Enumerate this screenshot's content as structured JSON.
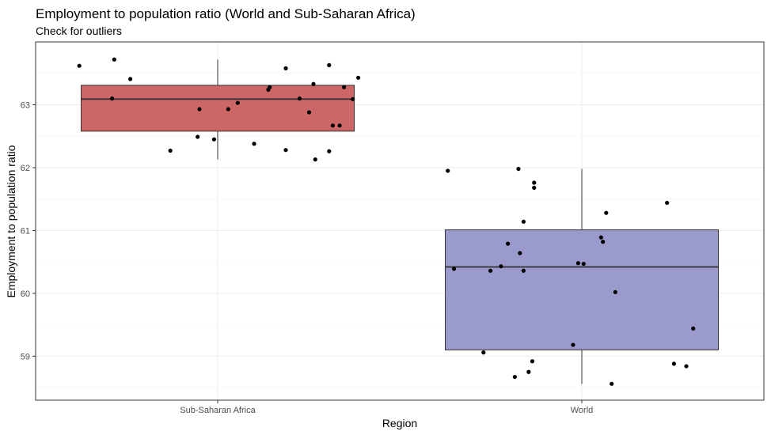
{
  "chart_data": {
    "type": "boxplot",
    "title": "Employment to population ratio (World and Sub-Saharan Africa)",
    "subtitle": "Check for outliers",
    "xlabel": "Region",
    "ylabel": "Employment to population ratio",
    "categories": [
      "Sub-Saharan Africa",
      "World"
    ],
    "ylim": [
      58.3,
      64.0
    ],
    "yticks": [
      59,
      60,
      61,
      62,
      63
    ],
    "grid": true,
    "colors": {
      "Sub-Saharan Africa": "#cd6666",
      "World": "#9b9acc"
    },
    "boxes": [
      {
        "category": "Sub-Saharan Africa",
        "whisker_low": 62.13,
        "q1": 62.58,
        "median": 63.09,
        "q3": 63.31,
        "whisker_high": 63.72
      },
      {
        "category": "World",
        "whisker_low": 58.56,
        "q1": 59.1,
        "median": 60.42,
        "q3": 61.01,
        "whisker_high": 61.98
      }
    ],
    "points": [
      {
        "category": "Sub-Saharan Africa",
        "jitter": -0.38,
        "value": 63.62
      },
      {
        "category": "Sub-Saharan Africa",
        "jitter": -0.284,
        "value": 63.72
      },
      {
        "category": "Sub-Saharan Africa",
        "jitter": -0.29,
        "value": 63.1
      },
      {
        "category": "Sub-Saharan Africa",
        "jitter": -0.24,
        "value": 63.41
      },
      {
        "category": "Sub-Saharan Africa",
        "jitter": -0.13,
        "value": 62.27
      },
      {
        "category": "Sub-Saharan Africa",
        "jitter": -0.055,
        "value": 62.49
      },
      {
        "category": "Sub-Saharan Africa",
        "jitter": -0.05,
        "value": 62.93
      },
      {
        "category": "Sub-Saharan Africa",
        "jitter": -0.01,
        "value": 62.45
      },
      {
        "category": "Sub-Saharan Africa",
        "jitter": 0.029,
        "value": 62.93
      },
      {
        "category": "Sub-Saharan Africa",
        "jitter": 0.055,
        "value": 63.03
      },
      {
        "category": "Sub-Saharan Africa",
        "jitter": 0.1,
        "value": 62.38
      },
      {
        "category": "Sub-Saharan Africa",
        "jitter": 0.139,
        "value": 63.24
      },
      {
        "category": "Sub-Saharan Africa",
        "jitter": 0.143,
        "value": 63.28
      },
      {
        "category": "Sub-Saharan Africa",
        "jitter": 0.187,
        "value": 63.58
      },
      {
        "category": "Sub-Saharan Africa",
        "jitter": 0.187,
        "value": 62.28
      },
      {
        "category": "Sub-Saharan Africa",
        "jitter": 0.225,
        "value": 63.1
      },
      {
        "category": "Sub-Saharan Africa",
        "jitter": 0.251,
        "value": 62.88
      },
      {
        "category": "Sub-Saharan Africa",
        "jitter": 0.263,
        "value": 63.33
      },
      {
        "category": "Sub-Saharan Africa",
        "jitter": 0.268,
        "value": 62.13
      },
      {
        "category": "Sub-Saharan Africa",
        "jitter": 0.306,
        "value": 63.63
      },
      {
        "category": "Sub-Saharan Africa",
        "jitter": 0.306,
        "value": 62.26
      },
      {
        "category": "Sub-Saharan Africa",
        "jitter": 0.316,
        "value": 62.67
      },
      {
        "category": "Sub-Saharan Africa",
        "jitter": 0.335,
        "value": 62.67
      },
      {
        "category": "Sub-Saharan Africa",
        "jitter": 0.347,
        "value": 63.28
      },
      {
        "category": "Sub-Saharan Africa",
        "jitter": 0.371,
        "value": 63.09
      },
      {
        "category": "Sub-Saharan Africa",
        "jitter": 0.386,
        "value": 63.43
      },
      {
        "category": "World",
        "jitter": -0.368,
        "value": 61.95
      },
      {
        "category": "World",
        "jitter": -0.351,
        "value": 60.39
      },
      {
        "category": "World",
        "jitter": -0.27,
        "value": 59.06
      },
      {
        "category": "World",
        "jitter": -0.251,
        "value": 60.36
      },
      {
        "category": "World",
        "jitter": -0.222,
        "value": 60.43
      },
      {
        "category": "World",
        "jitter": -0.203,
        "value": 60.79
      },
      {
        "category": "World",
        "jitter": -0.184,
        "value": 58.67
      },
      {
        "category": "World",
        "jitter": -0.174,
        "value": 61.98
      },
      {
        "category": "World",
        "jitter": -0.17,
        "value": 60.64
      },
      {
        "category": "World",
        "jitter": -0.16,
        "value": 60.36
      },
      {
        "category": "World",
        "jitter": -0.16,
        "value": 61.14
      },
      {
        "category": "World",
        "jitter": -0.146,
        "value": 58.75
      },
      {
        "category": "World",
        "jitter": -0.136,
        "value": 58.92
      },
      {
        "category": "World",
        "jitter": -0.131,
        "value": 61.68
      },
      {
        "category": "World",
        "jitter": -0.131,
        "value": 61.76
      },
      {
        "category": "World",
        "jitter": -0.024,
        "value": 59.18
      },
      {
        "category": "World",
        "jitter": -0.01,
        "value": 60.48
      },
      {
        "category": "World",
        "jitter": 0.005,
        "value": 60.47
      },
      {
        "category": "World",
        "jitter": 0.053,
        "value": 60.89
      },
      {
        "category": "World",
        "jitter": 0.058,
        "value": 60.82
      },
      {
        "category": "World",
        "jitter": 0.067,
        "value": 61.28
      },
      {
        "category": "World",
        "jitter": 0.082,
        "value": 58.56
      },
      {
        "category": "World",
        "jitter": 0.092,
        "value": 60.02
      },
      {
        "category": "World",
        "jitter": 0.234,
        "value": 61.44
      },
      {
        "category": "World",
        "jitter": 0.253,
        "value": 58.88
      },
      {
        "category": "World",
        "jitter": 0.287,
        "value": 58.84
      },
      {
        "category": "World",
        "jitter": 0.306,
        "value": 59.44
      }
    ]
  }
}
